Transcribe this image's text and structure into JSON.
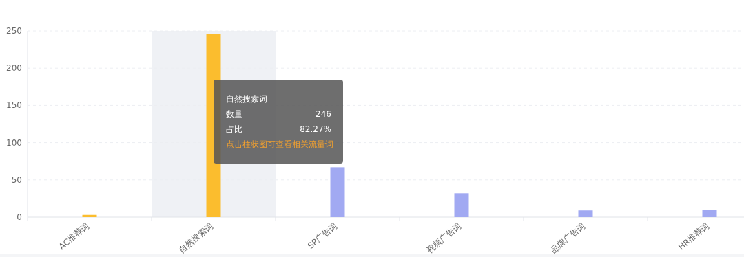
{
  "chart_data": {
    "type": "bar",
    "categories": [
      "AC推荐词",
      "自然搜索词",
      "SP广告词",
      "视频广告词",
      "品牌广告词",
      "HR推荐词"
    ],
    "values": [
      3,
      246,
      67,
      32,
      9,
      10
    ],
    "colors": [
      "#fbbd2e",
      "#fbbd2e",
      "#a1a9f2",
      "#a1a9f2",
      "#a1a9f2",
      "#a1a9f2"
    ],
    "ylim": [
      0,
      250
    ],
    "yticks": [
      0,
      50,
      100,
      150,
      200,
      250
    ],
    "grid": "y",
    "bands": [
      {
        "axis": "x",
        "from": "自然搜索词",
        "to": "自然搜索词",
        "color": "#eff1f5"
      }
    ],
    "annotations": [
      "自然搜索词",
      "数量",
      "246",
      "占比",
      "82.27%",
      "点击柱状图可查看相关流量词"
    ]
  }
}
